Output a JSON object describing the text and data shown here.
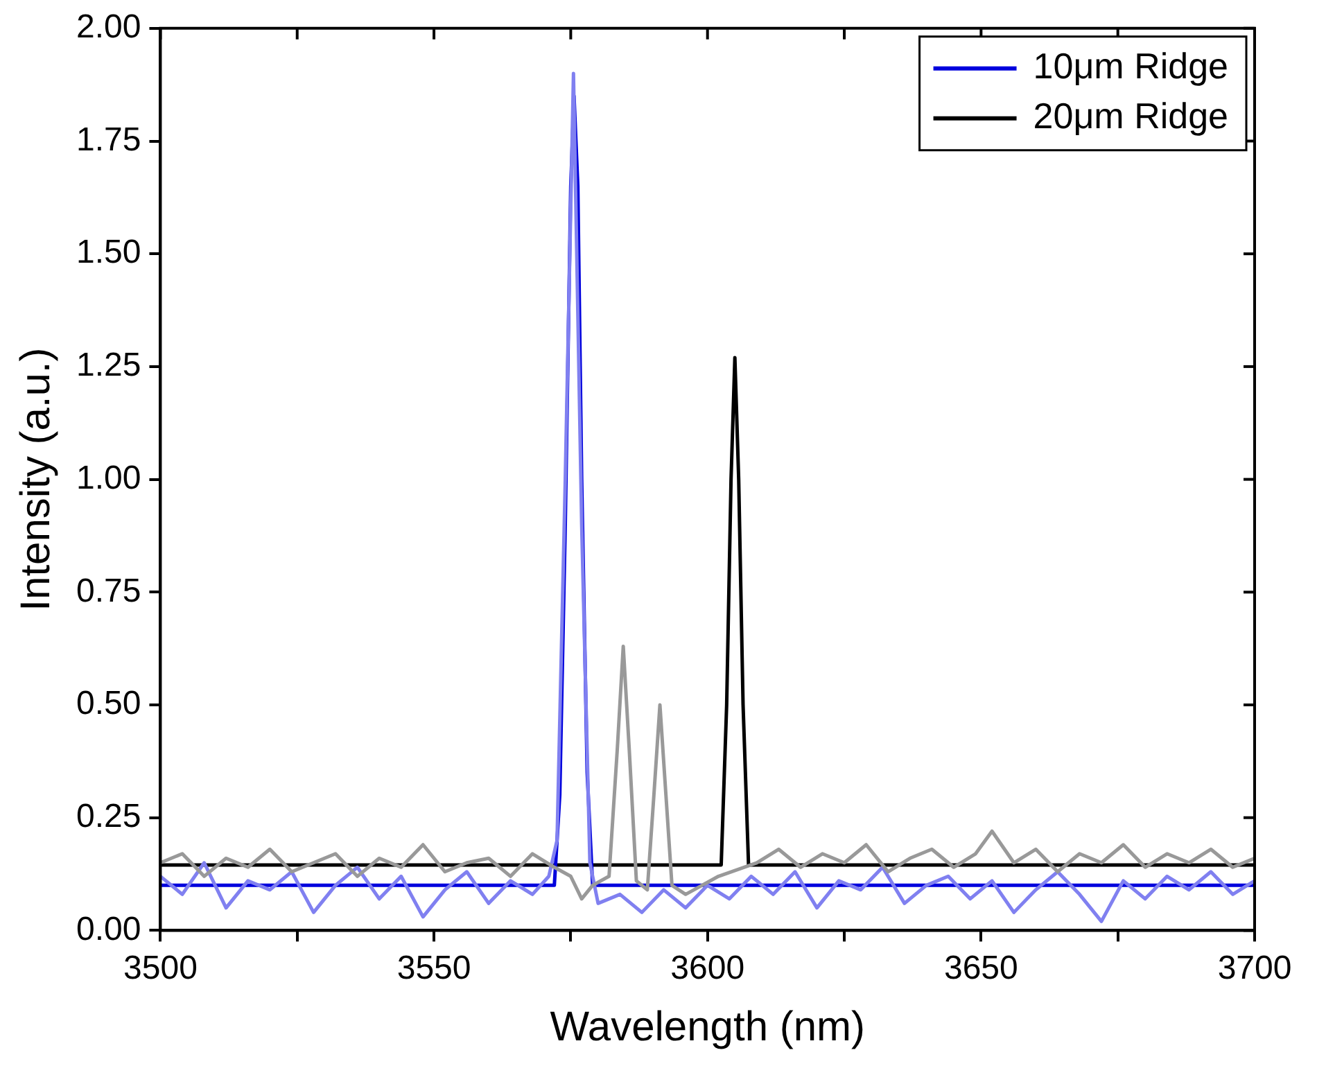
{
  "chart_data": {
    "type": "line",
    "xlabel": "Wavelength (nm)",
    "ylabel": "Intensity (a.u.)",
    "xlim": [
      3500,
      3700
    ],
    "xticks": [
      3500,
      {
        "value": 3525,
        "label": null
      },
      3550,
      {
        "value": 3575,
        "label": null
      },
      3600,
      {
        "value": 3625,
        "label": null
      },
      3650,
      {
        "value": 3675,
        "label": null
      },
      3700
    ],
    "ylim": [
      0,
      2
    ],
    "yticks": [
      {
        "value": 0,
        "label": "0.00"
      },
      {
        "value": 0.25,
        "label": "0.25"
      },
      {
        "value": 0.5,
        "label": "0.50"
      },
      {
        "value": 0.75,
        "label": "0.75"
      },
      {
        "value": 1,
        "label": "1.00"
      },
      {
        "value": 1.25,
        "label": "1.25"
      },
      {
        "value": 1.5,
        "label": "1.50"
      },
      {
        "value": 1.75,
        "label": "1.75"
      },
      {
        "value": 2,
        "label": "2.00"
      }
    ],
    "grid": false,
    "legend": "top right",
    "marker": "none",
    "line_style": "solid",
    "series": [
      {
        "color": "#999999",
        "x": [
          3500,
          3504,
          3508,
          3512,
          3516,
          3520,
          3524,
          3528,
          3532,
          3536,
          3540,
          3544,
          3548,
          3552,
          3556,
          3560,
          3564,
          3568,
          3572,
          3575,
          3577,
          3579,
          3582,
          3583.5,
          3584.6,
          3585.7,
          3587,
          3589,
          3590.2,
          3591.3,
          3592.4,
          3593.5,
          3596,
          3599,
          3602,
          3609,
          3613,
          3617,
          3621,
          3625,
          3629,
          3633,
          3637,
          3641,
          3645,
          3649,
          3652,
          3656,
          3660,
          3664,
          3668,
          3672,
          3676,
          3680,
          3684,
          3688,
          3692,
          3696,
          3700
        ],
        "values": [
          0.15,
          0.17,
          0.12,
          0.16,
          0.14,
          0.18,
          0.13,
          0.15,
          0.17,
          0.12,
          0.16,
          0.14,
          0.19,
          0.13,
          0.15,
          0.16,
          0.12,
          0.17,
          0.14,
          0.12,
          0.07,
          0.1,
          0.12,
          0.4,
          0.63,
          0.4,
          0.11,
          0.09,
          0.3,
          0.5,
          0.3,
          0.1,
          0.08,
          0.1,
          0.12,
          0.15,
          0.18,
          0.14,
          0.17,
          0.15,
          0.19,
          0.13,
          0.16,
          0.18,
          0.14,
          0.17,
          0.22,
          0.15,
          0.18,
          0.13,
          0.17,
          0.15,
          0.19,
          0.14,
          0.17,
          0.15,
          0.18,
          0.14,
          0.16
        ]
      },
      {
        "color": "#8080f0",
        "x": [
          3500,
          3504,
          3508,
          3512,
          3516,
          3520,
          3524,
          3528,
          3532,
          3536,
          3540,
          3544,
          3548,
          3552,
          3556,
          3560,
          3564,
          3568,
          3571,
          3572.5,
          3574,
          3575.5,
          3577,
          3578.5,
          3580,
          3584,
          3588,
          3592,
          3596,
          3600,
          3604,
          3608,
          3612,
          3616,
          3620,
          3624,
          3628,
          3632,
          3636,
          3640,
          3644,
          3648,
          3652,
          3656,
          3660,
          3664,
          3668,
          3672,
          3676,
          3680,
          3684,
          3688,
          3692,
          3696,
          3700
        ],
        "values": [
          0.12,
          0.08,
          0.15,
          0.05,
          0.11,
          0.09,
          0.13,
          0.04,
          0.1,
          0.14,
          0.07,
          0.12,
          0.03,
          0.09,
          0.13,
          0.06,
          0.11,
          0.08,
          0.12,
          0.2,
          1.0,
          1.9,
          0.9,
          0.15,
          0.06,
          0.08,
          0.04,
          0.09,
          0.05,
          0.1,
          0.07,
          0.12,
          0.08,
          0.13,
          0.05,
          0.11,
          0.09,
          0.14,
          0.06,
          0.1,
          0.12,
          0.07,
          0.11,
          0.04,
          0.09,
          0.13,
          0.08,
          0.02,
          0.11,
          0.07,
          0.12,
          0.09,
          0.13,
          0.08,
          0.11
        ]
      },
      {
        "name": "10μm Ridge",
        "color": "#0000dd",
        "x": [
          3500,
          3572,
          3573,
          3574,
          3575,
          3575.6,
          3576.3,
          3577,
          3578,
          3579,
          3700
        ],
        "values": [
          0.1,
          0.1,
          0.3,
          0.9,
          1.65,
          1.85,
          1.65,
          1.0,
          0.35,
          0.1,
          0.1
        ]
      },
      {
        "name": "20μm Ridge",
        "color": "#000000",
        "x": [
          3500,
          3602.5,
          3603.5,
          3604.3,
          3605,
          3605.7,
          3606.5,
          3607.5,
          3700
        ],
        "values": [
          0.145,
          0.145,
          0.5,
          1.0,
          1.27,
          1.0,
          0.5,
          0.145,
          0.145
        ]
      }
    ]
  }
}
